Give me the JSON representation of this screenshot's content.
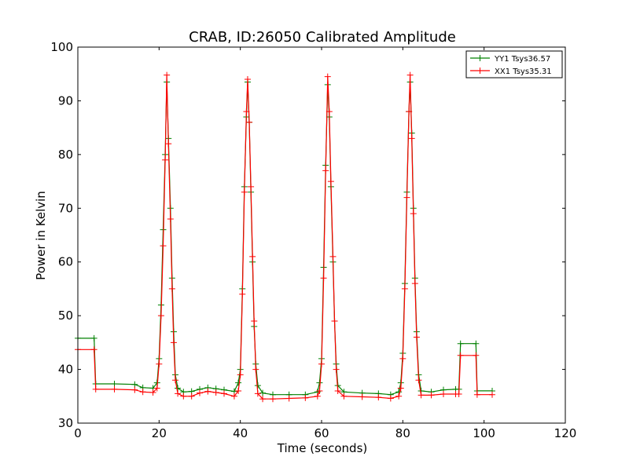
{
  "chart_data": {
    "type": "line",
    "title": "CRAB, ID:26050 Calibrated Amplitude",
    "xlabel": "Time (seconds)",
    "ylabel": "Power in Kelvin",
    "xlim": [
      0,
      120
    ],
    "ylim": [
      30,
      100
    ],
    "xticks": [
      "0",
      "20",
      "40",
      "60",
      "80",
      "100",
      "120"
    ],
    "yticks": [
      "30",
      "40",
      "50",
      "60",
      "70",
      "80",
      "90",
      "100"
    ],
    "grid": false,
    "legend_position": "top-right",
    "marker": "+",
    "series": [
      {
        "name": "YY1 Tsys36.57",
        "color": "#008000",
        "points": [
          [
            0.0,
            45.8
          ],
          [
            4.0,
            45.8
          ],
          [
            4.4,
            37.3
          ],
          [
            9.0,
            37.3
          ],
          [
            14.0,
            37.2
          ],
          [
            16.0,
            36.6
          ],
          [
            18.5,
            36.5
          ],
          [
            19.5,
            37.5
          ],
          [
            20.0,
            42.0
          ],
          [
            20.5,
            52.0
          ],
          [
            21.0,
            66.0
          ],
          [
            21.5,
            80.0
          ],
          [
            21.9,
            93.5
          ],
          [
            22.3,
            83.0
          ],
          [
            22.8,
            70.0
          ],
          [
            23.2,
            57.0
          ],
          [
            23.6,
            47.0
          ],
          [
            24.0,
            39.0
          ],
          [
            24.6,
            36.5
          ],
          [
            26.0,
            35.8
          ],
          [
            28.0,
            35.9
          ],
          [
            30.0,
            36.3
          ],
          [
            32.0,
            36.6
          ],
          [
            34.0,
            36.4
          ],
          [
            36.0,
            36.2
          ],
          [
            38.5,
            35.9
          ],
          [
            39.5,
            37.5
          ],
          [
            40.0,
            40.0
          ],
          [
            40.5,
            55.0
          ],
          [
            41.0,
            74.0
          ],
          [
            41.5,
            87.0
          ],
          [
            41.8,
            93.5
          ],
          [
            42.2,
            86.0
          ],
          [
            42.6,
            73.0
          ],
          [
            43.0,
            60.0
          ],
          [
            43.4,
            48.0
          ],
          [
            43.8,
            41.0
          ],
          [
            44.3,
            37.0
          ],
          [
            45.5,
            35.6
          ],
          [
            48.0,
            35.3
          ],
          [
            52.0,
            35.3
          ],
          [
            56.0,
            35.3
          ],
          [
            59.0,
            35.8
          ],
          [
            59.5,
            37.5
          ],
          [
            60.0,
            42.0
          ],
          [
            60.5,
            59.0
          ],
          [
            61.0,
            78.0
          ],
          [
            61.5,
            93.0
          ],
          [
            61.9,
            87.0
          ],
          [
            62.3,
            74.0
          ],
          [
            62.8,
            60.0
          ],
          [
            63.2,
            49.0
          ],
          [
            63.6,
            41.0
          ],
          [
            64.0,
            37.0
          ],
          [
            65.5,
            35.8
          ],
          [
            70.0,
            35.6
          ],
          [
            74.0,
            35.5
          ],
          [
            77.0,
            35.3
          ],
          [
            79.0,
            35.8
          ],
          [
            79.5,
            37.5
          ],
          [
            80.0,
            43.0
          ],
          [
            80.5,
            56.0
          ],
          [
            81.0,
            73.0
          ],
          [
            81.5,
            88.0
          ],
          [
            81.8,
            93.5
          ],
          [
            82.2,
            84.0
          ],
          [
            82.6,
            70.0
          ],
          [
            83.0,
            57.0
          ],
          [
            83.4,
            47.0
          ],
          [
            83.9,
            39.0
          ],
          [
            84.5,
            36.0
          ],
          [
            87.0,
            35.8
          ],
          [
            90.0,
            36.2
          ],
          [
            93.0,
            36.3
          ],
          [
            93.8,
            36.3
          ],
          [
            94.2,
            44.8
          ],
          [
            98.0,
            44.8
          ],
          [
            98.3,
            36.0
          ],
          [
            102.0,
            36.0
          ]
        ]
      },
      {
        "name": "XX1 Tsys35.31",
        "color": "#ff0000",
        "points": [
          [
            0.0,
            43.7
          ],
          [
            4.0,
            43.7
          ],
          [
            4.4,
            36.3
          ],
          [
            9.0,
            36.3
          ],
          [
            14.0,
            36.2
          ],
          [
            16.0,
            35.8
          ],
          [
            18.5,
            35.7
          ],
          [
            19.5,
            36.5
          ],
          [
            20.0,
            41.0
          ],
          [
            20.5,
            50.0
          ],
          [
            21.0,
            63.0
          ],
          [
            21.5,
            79.0
          ],
          [
            21.9,
            94.8
          ],
          [
            22.3,
            82.0
          ],
          [
            22.8,
            68.0
          ],
          [
            23.2,
            55.0
          ],
          [
            23.6,
            45.0
          ],
          [
            24.0,
            38.0
          ],
          [
            24.6,
            35.5
          ],
          [
            26.0,
            35.0
          ],
          [
            28.0,
            35.0
          ],
          [
            30.0,
            35.6
          ],
          [
            32.0,
            35.9
          ],
          [
            34.0,
            35.7
          ],
          [
            36.0,
            35.5
          ],
          [
            38.5,
            35.0
          ],
          [
            39.5,
            36.0
          ],
          [
            40.0,
            39.0
          ],
          [
            40.5,
            54.0
          ],
          [
            41.0,
            73.0
          ],
          [
            41.5,
            88.0
          ],
          [
            41.8,
            94.0
          ],
          [
            42.2,
            86.0
          ],
          [
            42.6,
            74.0
          ],
          [
            43.0,
            61.0
          ],
          [
            43.4,
            49.0
          ],
          [
            43.8,
            40.0
          ],
          [
            44.3,
            35.5
          ],
          [
            45.5,
            34.5
          ],
          [
            48.0,
            34.5
          ],
          [
            52.0,
            34.6
          ],
          [
            56.0,
            34.7
          ],
          [
            59.0,
            35.0
          ],
          [
            59.5,
            36.0
          ],
          [
            60.0,
            41.0
          ],
          [
            60.5,
            57.0
          ],
          [
            61.0,
            77.0
          ],
          [
            61.5,
            94.5
          ],
          [
            61.9,
            88.0
          ],
          [
            62.3,
            75.0
          ],
          [
            62.8,
            61.0
          ],
          [
            63.2,
            49.0
          ],
          [
            63.6,
            40.0
          ],
          [
            64.0,
            36.0
          ],
          [
            65.5,
            35.0
          ],
          [
            70.0,
            34.9
          ],
          [
            74.0,
            34.8
          ],
          [
            77.0,
            34.6
          ],
          [
            79.0,
            35.0
          ],
          [
            79.5,
            36.5
          ],
          [
            80.0,
            42.0
          ],
          [
            80.5,
            55.0
          ],
          [
            81.0,
            72.0
          ],
          [
            81.5,
            88.0
          ],
          [
            81.8,
            94.8
          ],
          [
            82.2,
            83.0
          ],
          [
            82.6,
            69.0
          ],
          [
            83.0,
            56.0
          ],
          [
            83.4,
            46.0
          ],
          [
            83.9,
            38.0
          ],
          [
            84.5,
            35.2
          ],
          [
            87.0,
            35.2
          ],
          [
            90.0,
            35.4
          ],
          [
            93.0,
            35.4
          ],
          [
            93.8,
            35.4
          ],
          [
            94.2,
            42.6
          ],
          [
            98.0,
            42.6
          ],
          [
            98.3,
            35.3
          ],
          [
            102.0,
            35.3
          ]
        ]
      }
    ]
  }
}
